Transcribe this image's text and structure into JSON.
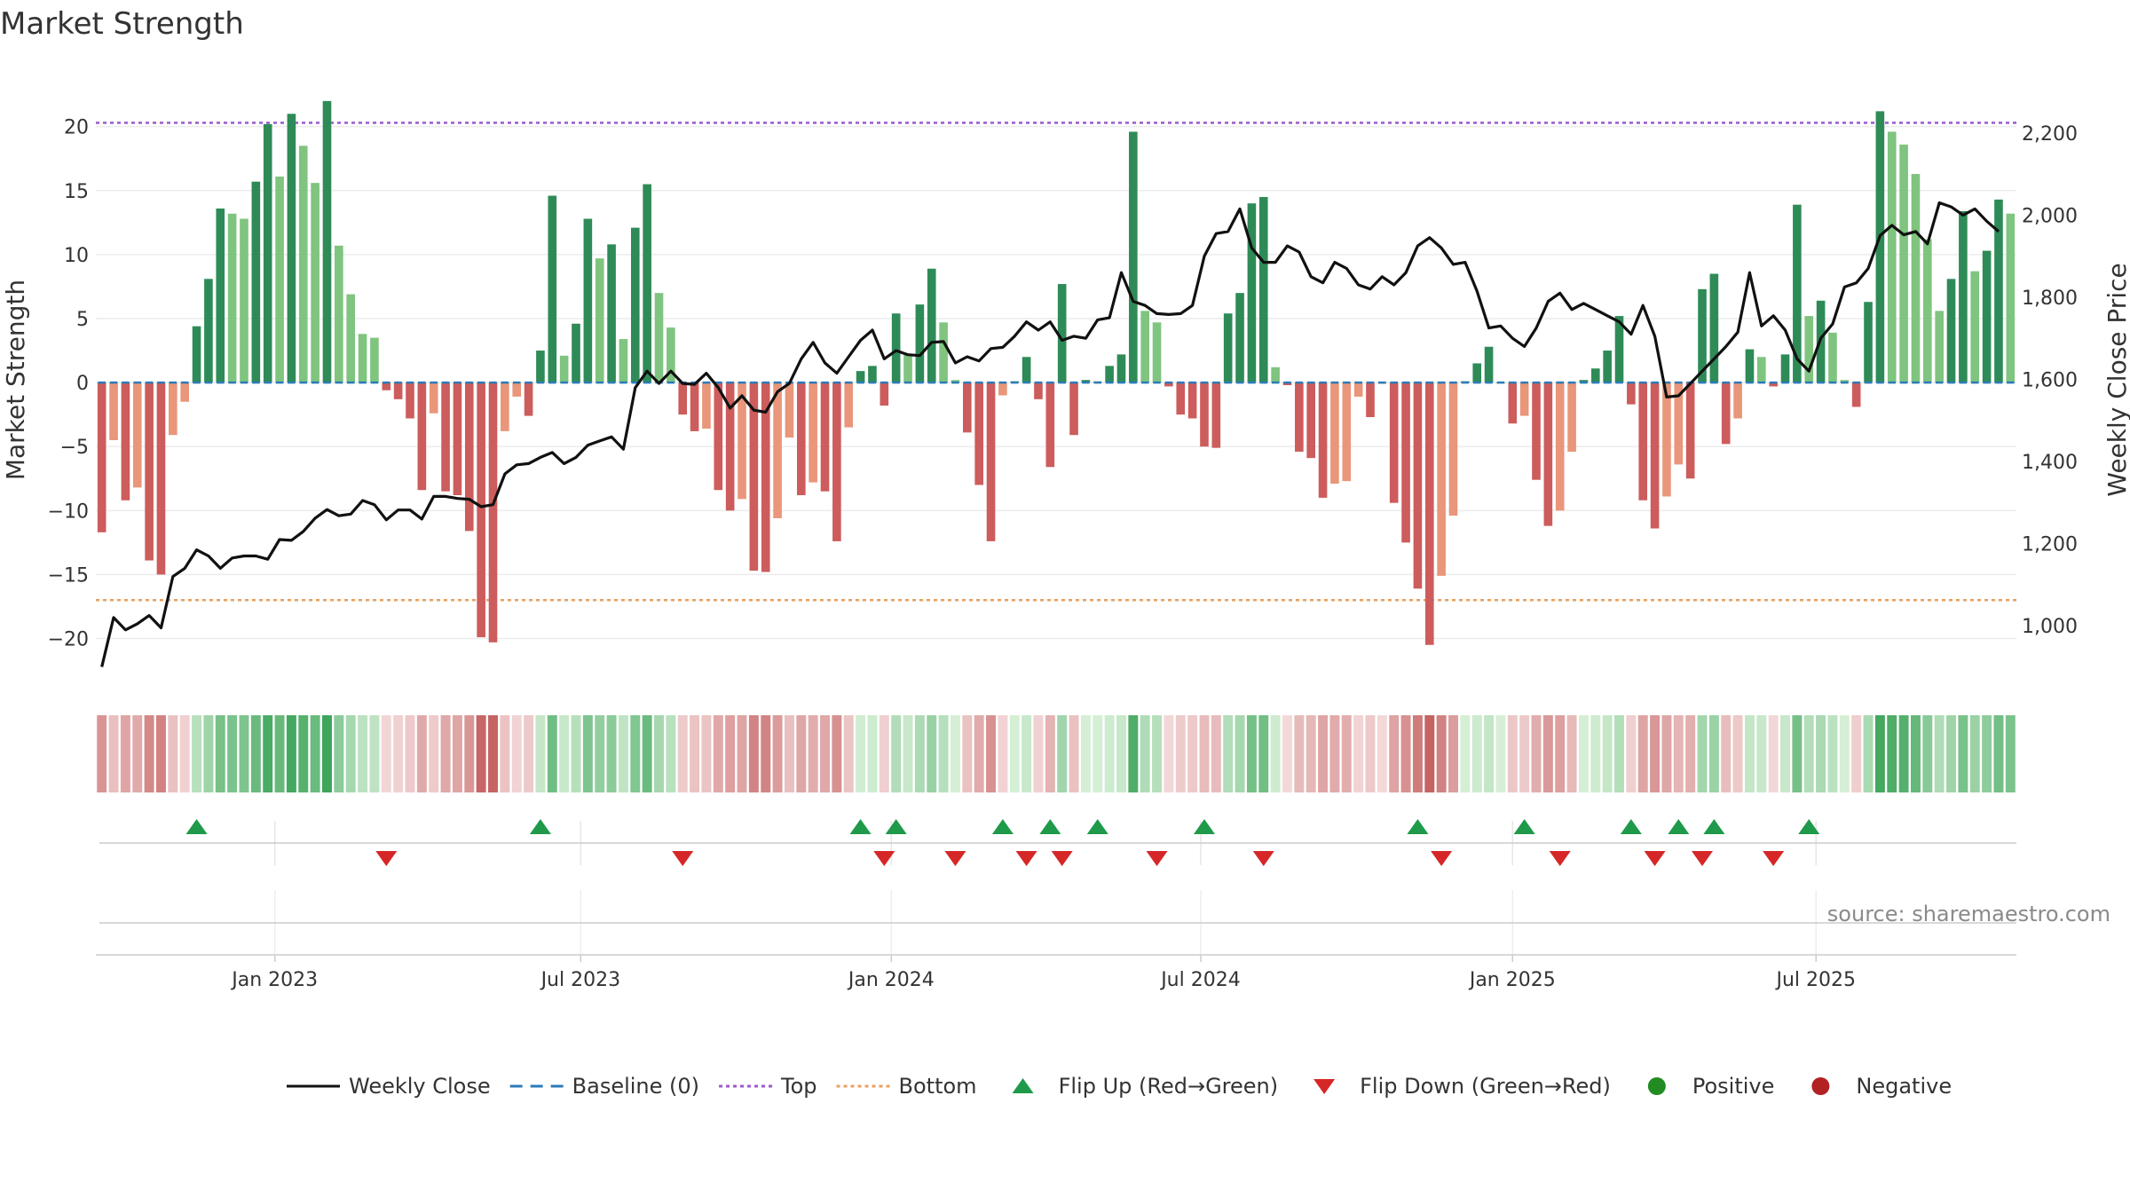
{
  "chart_data": {
    "type": "bar",
    "title": "Market Strength",
    "ylabel": "Market Strength",
    "y2label": "Weekly Close Price",
    "ylim": [
      -23.5,
      24
    ],
    "y2lim": [
      860,
      2340
    ],
    "y_ticks": [
      20,
      15,
      10,
      5,
      0,
      -5,
      -10,
      -15,
      -20
    ],
    "y_tick_labels": [
      "20",
      "15",
      "10",
      "5",
      "0",
      "−5",
      "−10",
      "−15",
      "−20"
    ],
    "y2_ticks": [
      2200,
      2000,
      1800,
      1600,
      1400,
      1200,
      1000
    ],
    "y2_tick_labels": [
      "2,200",
      "2,000",
      "1,800",
      "1,600",
      "1,400",
      "1,200",
      "1,000"
    ],
    "x_tick_labels": [
      "Jan 2023",
      "Jul 2023",
      "Jan 2024",
      "Jul 2024",
      "Jan 2025",
      "Jul 2025"
    ],
    "x_tick_index": [
      14.6,
      40.4,
      66.6,
      92.7,
      119,
      144.6
    ],
    "top_line": 20.3,
    "bottom_line": -17,
    "grid": true,
    "legend_position": "bottom",
    "legend": [
      {
        "label": "Weekly Close",
        "kind": "solid-line",
        "color": "#111111"
      },
      {
        "label": "Baseline (0)",
        "kind": "dash-line",
        "color": "#2b7bba"
      },
      {
        "label": "Top",
        "kind": "dot-line",
        "color": "#9b59d0"
      },
      {
        "label": "Bottom",
        "kind": "dot-line",
        "color": "#e8a060"
      },
      {
        "label": "Flip Up (Red→Green)",
        "kind": "tri-up",
        "color": "#1e9a4a"
      },
      {
        "label": "Flip Down (Green→Red)",
        "kind": "tri-down",
        "color": "#d62728"
      },
      {
        "label": "Positive",
        "kind": "dot",
        "color": "#228b22"
      },
      {
        "label": "Negative",
        "kind": "dot",
        "color": "#b22222"
      }
    ],
    "source": "source: sharemaestro.com",
    "colors": {
      "strong_pos": "#2e8b57",
      "weak_pos": "#7fc47f",
      "strong_neg": "#cd5c5c",
      "weak_neg": "#e9967a",
      "price_line": "#111111",
      "baseline": "#2b7bba",
      "top": "#9b59d0",
      "bottom": "#e8a060",
      "flip_up": "#1e9a4a",
      "flip_down": "#d62728"
    },
    "flip_up_index": [
      8,
      37,
      64,
      67,
      76,
      80,
      84,
      93,
      111,
      120,
      129,
      133,
      136,
      144
    ],
    "flip_down_index": [
      24,
      49,
      66,
      72,
      78,
      81,
      89,
      98,
      113,
      123,
      131,
      135,
      141
    ],
    "strength": [
      -11.7,
      -4.5,
      -9.2,
      -8.2,
      -13.9,
      -15,
      -4.1,
      -1.5,
      4.4,
      8.1,
      13.6,
      13.2,
      12.8,
      15.7,
      20.2,
      16.1,
      21,
      18.5,
      15.6,
      22,
      10.7,
      6.9,
      3.8,
      3.5,
      -0.6,
      -1.3,
      -2.8,
      -8.4,
      -2.4,
      -8.5,
      -8.8,
      -11.6,
      -19.9,
      -20.3,
      -3.8,
      -1.1,
      -2.6,
      2.5,
      14.6,
      2.1,
      4.6,
      12.8,
      9.7,
      10.8,
      3.4,
      12.1,
      15.5,
      7,
      4.3,
      -2.5,
      -3.8,
      -3.6,
      -8.4,
      -10,
      -9.1,
      -14.7,
      -14.8,
      -10.6,
      -4.3,
      -8.8,
      -7.8,
      -8.5,
      -12.4,
      -3.5,
      0.9,
      1.3,
      -1.8,
      5.4,
      2.2,
      6.1,
      8.9,
      4.7,
      0.2,
      -3.9,
      -8,
      -12.4,
      -1,
      0.1,
      2,
      -1.3,
      -6.6,
      7.7,
      -4.1,
      0.2,
      0.1,
      1.3,
      2.2,
      19.6,
      5.6,
      4.7,
      -0.3,
      -2.5,
      -2.8,
      -5,
      -5.1,
      5.4,
      7,
      14,
      14.5,
      1.2,
      -0.2,
      -5.4,
      -5.9,
      -9,
      -7.9,
      -7.7,
      -1.1,
      -2.7,
      -0.1,
      -9.4,
      -12.5,
      -16.1,
      -20.5,
      -15.1,
      -10.4,
      0.1,
      1.5,
      2.8,
      0,
      -3.2,
      -2.6,
      -7.6,
      -11.2,
      -10,
      -5.4,
      0.2,
      1.1,
      2.5,
      5.2,
      -1.7,
      -9.2,
      -11.4,
      -8.9,
      -6.4,
      -7.5,
      7.3,
      8.5,
      -4.8,
      -2.8,
      2.6,
      2,
      -0.3,
      2.2,
      13.9,
      5.2,
      6.4,
      3.9,
      0.2,
      -1.9,
      6.3,
      21.2,
      19.6,
      18.6,
      16.3,
      11.2,
      5.6,
      8.1,
      13.4,
      8.7,
      10.3,
      14.3,
      13.2
    ],
    "weekly_close": [
      900,
      1020,
      990,
      1005,
      1025,
      995,
      1120,
      1140,
      1185,
      1170,
      1140,
      1165,
      1170,
      1170,
      1162,
      1210,
      1208,
      1230,
      1262,
      1283,
      1268,
      1272,
      1305,
      1295,
      1258,
      1282,
      1282,
      1260,
      1315,
      1315,
      1310,
      1308,
      1290,
      1295,
      1370,
      1392,
      1395,
      1410,
      1422,
      1395,
      1410,
      1440,
      1450,
      1460,
      1430,
      1580,
      1620,
      1590,
      1620,
      1590,
      1588,
      1615,
      1580,
      1530,
      1560,
      1525,
      1520,
      1570,
      1590,
      1650,
      1690,
      1640,
      1615,
      1655,
      1695,
      1720,
      1650,
      1670,
      1660,
      1658,
      1690,
      1692,
      1640,
      1655,
      1645,
      1675,
      1678,
      1705,
      1740,
      1720,
      1740,
      1695,
      1705,
      1700,
      1745,
      1750,
      1860,
      1790,
      1780,
      1760,
      1758,
      1760,
      1780,
      1900,
      1955,
      1960,
      2015,
      1920,
      1885,
      1885,
      1925,
      1910,
      1850,
      1835,
      1885,
      1870,
      1830,
      1820,
      1850,
      1830,
      1860,
      1925,
      1945,
      1920,
      1880,
      1885,
      1815,
      1725,
      1730,
      1700,
      1680,
      1725,
      1790,
      1810,
      1770,
      1785,
      1770,
      1755,
      1740,
      1710,
      1780,
      1705,
      1557,
      1560,
      1590,
      1620,
      1650,
      1680,
      1715,
      1860,
      1730,
      1755,
      1720,
      1650,
      1620,
      1700,
      1735,
      1825,
      1835,
      1870,
      1950,
      1975,
      1952,
      1960,
      1930,
      2030,
      2020,
      2000,
      2015,
      1985,
      1960
    ]
  }
}
